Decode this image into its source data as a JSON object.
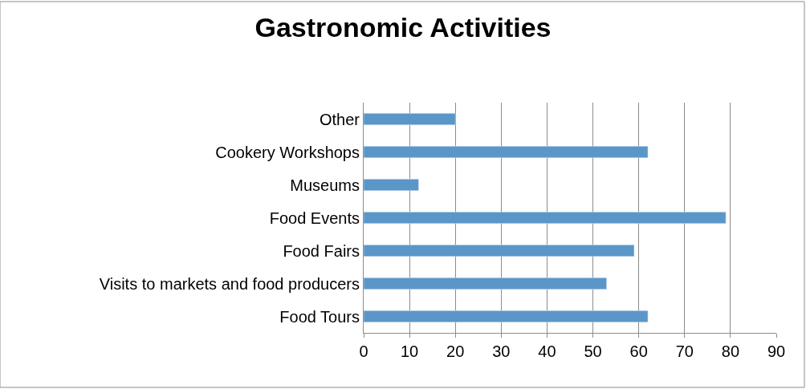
{
  "chart_data": {
    "type": "bar",
    "orientation": "horizontal",
    "title": "Gastronomic Activities",
    "categories": [
      "Other",
      "Cookery Workshops",
      "Museums",
      "Food Events",
      "Food Fairs",
      "Visits to markets and food producers",
      "Food Tours"
    ],
    "values": [
      20,
      62,
      12,
      79,
      59,
      53,
      62
    ],
    "color": "#5b96c9",
    "xlim": [
      0,
      90
    ],
    "xticks": [
      0,
      10,
      20,
      30,
      40,
      50,
      60,
      70,
      80,
      90
    ],
    "grid": "x"
  }
}
